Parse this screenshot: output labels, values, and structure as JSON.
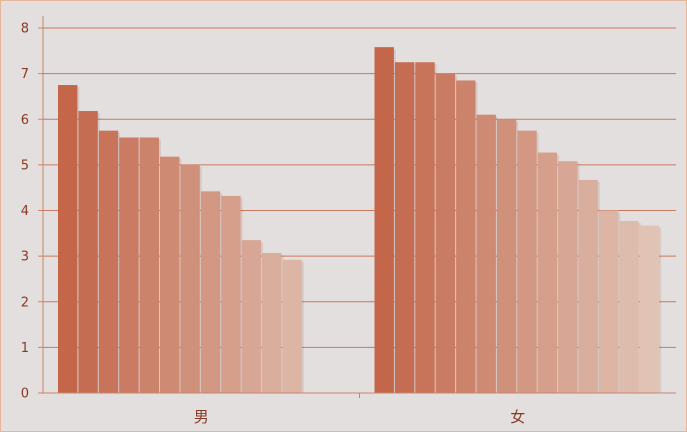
{
  "chart_data": {
    "type": "bar",
    "categories": [
      "男",
      "女"
    ],
    "series": [
      {
        "values": [
          6.75,
          7.58
        ]
      },
      {
        "values": [
          6.18,
          7.25
        ]
      },
      {
        "values": [
          5.75,
          7.25
        ]
      },
      {
        "values": [
          5.6,
          7.0
        ]
      },
      {
        "values": [
          5.6,
          6.85
        ]
      },
      {
        "values": [
          5.18,
          6.1
        ]
      },
      {
        "values": [
          5.0,
          6.0
        ]
      },
      {
        "values": [
          4.42,
          5.75
        ]
      },
      {
        "values": [
          4.32,
          5.27
        ]
      },
      {
        "values": [
          3.35,
          5.08
        ]
      },
      {
        "values": [
          3.07,
          4.67
        ]
      },
      {
        "values": [
          2.92,
          4.0
        ]
      },
      {
        "values": [
          null,
          3.77
        ]
      },
      {
        "values": [
          null,
          3.67
        ]
      }
    ],
    "ylim": [
      0,
      8
    ],
    "yticks": [
      "0",
      "1",
      "2",
      "3",
      "4",
      "5",
      "6",
      "7",
      "8"
    ],
    "grid": true,
    "title": "",
    "xlabel": "",
    "ylabel": "",
    "colors": {
      "background": "#e3dfde",
      "frame": "#f6e2d6",
      "axis": "#c9856a",
      "grid": "#c9795e",
      "text": "#8a3a22",
      "bar_dark": "#c3664a",
      "bar_light": "#e0c3b5"
    }
  }
}
